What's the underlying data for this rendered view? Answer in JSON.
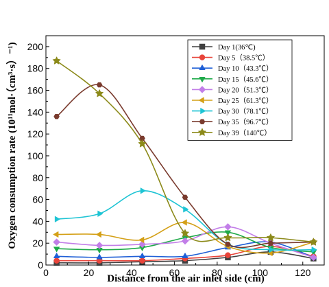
{
  "chart_data": {
    "type": "line",
    "title": "",
    "xlabel": "Distance from the air inlet side (cm)",
    "ylabel": "Oxygen consumption rate (10¹¹mol·（cm³·s）⁻¹)",
    "xlim": [
      0,
      130
    ],
    "ylim": [
      0,
      210
    ],
    "xticks": [
      0,
      20,
      40,
      60,
      80,
      100,
      120
    ],
    "yticks": [
      0,
      20,
      40,
      60,
      80,
      100,
      120,
      140,
      160,
      180,
      200
    ],
    "grid": false,
    "legend_position": "top-right",
    "x": [
      5,
      25,
      45,
      65,
      85,
      105,
      125
    ],
    "series": [
      {
        "name": "Day 1(36℃)",
        "color": "#404040",
        "marker": "square",
        "values": [
          2,
          2,
          3,
          4,
          7,
          12,
          6
        ]
      },
      {
        "name": "Day 5（38.5℃）",
        "color": "#e8443a",
        "marker": "circle",
        "values": [
          4,
          4,
          4,
          6,
          9,
          17,
          8
        ]
      },
      {
        "name": "Day 10（43.3℃）",
        "color": "#1f5fd6",
        "marker": "triangle-up",
        "values": [
          8,
          7,
          8,
          8,
          16,
          21,
          7
        ]
      },
      {
        "name": "Day 15（45.6℃）",
        "color": "#1faa4a",
        "marker": "triangle-down",
        "values": [
          15,
          14,
          16,
          25,
          30,
          16,
          12
        ]
      },
      {
        "name": "Day 20（51.3℃）",
        "color": "#c27ee8",
        "marker": "diamond",
        "values": [
          21,
          18,
          19,
          22,
          35,
          20,
          7
        ]
      },
      {
        "name": "Day 25（61.3℃）",
        "color": "#d4a017",
        "marker": "triangle-left",
        "values": [
          28,
          28,
          23,
          39,
          17,
          11,
          21
        ]
      },
      {
        "name": "Day 30（78.1℃）",
        "color": "#1ec4d4",
        "marker": "triangle-right",
        "values": [
          42,
          47,
          68,
          51,
          19,
          14,
          14
        ]
      },
      {
        "name": "Day 35（96.7℃）",
        "color": "#7a3b2e",
        "marker": "hexagon",
        "values": [
          136,
          165,
          116,
          62,
          19,
          20,
          21
        ]
      },
      {
        "name": "Day 39（140℃）",
        "color": "#8c8a1a",
        "marker": "star",
        "values": [
          187,
          157,
          111,
          29,
          25,
          25,
          21
        ]
      }
    ]
  }
}
